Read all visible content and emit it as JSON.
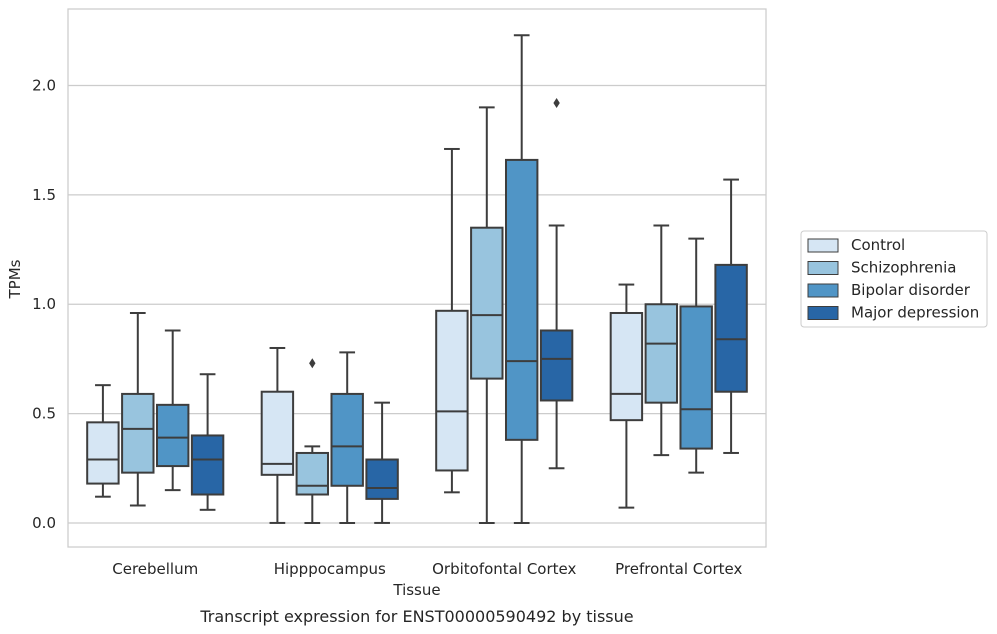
{
  "chart_data": {
    "type": "box",
    "title": "",
    "caption": "Transcript expression for ENST00000590492 by tissue",
    "xlabel": "Tissue",
    "ylabel": "TPMs",
    "ylim": [
      -0.11,
      2.35
    ],
    "yticks": [
      0.0,
      0.5,
      1.0,
      1.5,
      2.0
    ],
    "ytick_labels": [
      "0.0",
      "0.5",
      "1.0",
      "1.5",
      "2.0"
    ],
    "grid": "horizontal",
    "legend_position": "right",
    "categories": [
      "Cerebellum",
      "Hipppocampus",
      "Orbitofontal Cortex",
      "Prefrontal Cortex"
    ],
    "series": [
      {
        "name": "Control",
        "color": "#d6e6f4",
        "boxes": [
          {
            "whislo": 0.12,
            "q1": 0.18,
            "med": 0.29,
            "q3": 0.46,
            "whishi": 0.63,
            "fliers": []
          },
          {
            "whislo": 0.0,
            "q1": 0.22,
            "med": 0.27,
            "q3": 0.6,
            "whishi": 0.8,
            "fliers": []
          },
          {
            "whislo": 0.14,
            "q1": 0.24,
            "med": 0.51,
            "q3": 0.97,
            "whishi": 1.71,
            "fliers": []
          },
          {
            "whislo": 0.07,
            "q1": 0.47,
            "med": 0.59,
            "q3": 0.96,
            "whishi": 1.09,
            "fliers": []
          }
        ]
      },
      {
        "name": "Schizophrenia",
        "color": "#98c4de",
        "boxes": [
          {
            "whislo": 0.08,
            "q1": 0.23,
            "med": 0.43,
            "q3": 0.59,
            "whishi": 0.96,
            "fliers": []
          },
          {
            "whislo": 0.0,
            "q1": 0.13,
            "med": 0.17,
            "q3": 0.32,
            "whishi": 0.35,
            "fliers": [
              0.73
            ]
          },
          {
            "whislo": 0.0,
            "q1": 0.66,
            "med": 0.95,
            "q3": 1.35,
            "whishi": 1.9,
            "fliers": []
          },
          {
            "whislo": 0.31,
            "q1": 0.55,
            "med": 0.82,
            "q3": 1.0,
            "whishi": 1.36,
            "fliers": []
          }
        ]
      },
      {
        "name": "Bipolar disorder",
        "color": "#5095c6",
        "boxes": [
          {
            "whislo": 0.15,
            "q1": 0.26,
            "med": 0.39,
            "q3": 0.54,
            "whishi": 0.88,
            "fliers": []
          },
          {
            "whislo": 0.0,
            "q1": 0.17,
            "med": 0.35,
            "q3": 0.59,
            "whishi": 0.78,
            "fliers": []
          },
          {
            "whislo": 0.0,
            "q1": 0.38,
            "med": 0.74,
            "q3": 1.66,
            "whishi": 2.23,
            "fliers": []
          },
          {
            "whislo": 0.23,
            "q1": 0.34,
            "med": 0.52,
            "q3": 0.99,
            "whishi": 1.3,
            "fliers": []
          }
        ]
      },
      {
        "name": "Major depression",
        "color": "#2866a6",
        "boxes": [
          {
            "whislo": 0.06,
            "q1": 0.13,
            "med": 0.29,
            "q3": 0.4,
            "whishi": 0.68,
            "fliers": []
          },
          {
            "whislo": 0.0,
            "q1": 0.11,
            "med": 0.16,
            "q3": 0.29,
            "whishi": 0.55,
            "fliers": []
          },
          {
            "whislo": 0.25,
            "q1": 0.56,
            "med": 0.75,
            "q3": 0.88,
            "whishi": 1.36,
            "fliers": [
              1.92
            ]
          },
          {
            "whislo": 0.32,
            "q1": 0.6,
            "med": 0.84,
            "q3": 1.18,
            "whishi": 1.57,
            "fliers": []
          }
        ]
      }
    ]
  }
}
